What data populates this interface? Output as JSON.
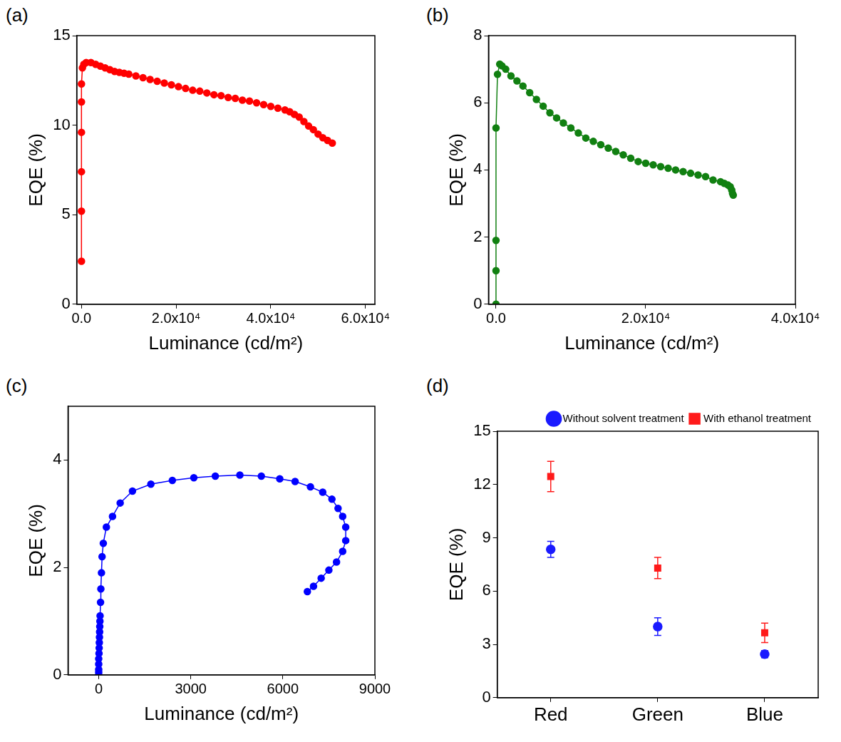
{
  "chart_data": [
    {
      "panel_label": "(a)",
      "type": "line",
      "x_label": "Luminance (cd/m²)",
      "y_label": "EQE (%)",
      "xlim": [
        -1000,
        62000
      ],
      "xticks": [
        {
          "value": 0,
          "label": "0.0"
        },
        {
          "value": 20000,
          "label": "2.0x10⁴"
        },
        {
          "value": 40000,
          "label": "4.0x10⁴"
        },
        {
          "value": 60000,
          "label": "6.0x10⁴"
        }
      ],
      "ylim": [
        0,
        15
      ],
      "yticks": [
        0,
        5,
        10,
        15
      ],
      "grid": false,
      "series": [
        {
          "color": "#ff0000",
          "marker": "circle",
          "line_style": "solid",
          "x": [
            0,
            0,
            0,
            0,
            0,
            0,
            200,
            500,
            1000,
            2000,
            3000,
            4000,
            5000,
            6000,
            7000,
            8000,
            9000,
            10000,
            11500,
            13000,
            14500,
            16000,
            17500,
            19000,
            20500,
            22000,
            23500,
            25000,
            26500,
            28000,
            29500,
            31000,
            32500,
            34000,
            35500,
            37000,
            38500,
            40000,
            41500,
            43000,
            44000,
            45000,
            46000,
            47000,
            48000,
            49000,
            50000,
            51000,
            52000,
            53000
          ],
          "values": [
            2.4,
            5.2,
            7.4,
            9.6,
            11.3,
            12.3,
            13.2,
            13.4,
            13.5,
            13.5,
            13.4,
            13.3,
            13.2,
            13.1,
            13.0,
            12.95,
            12.9,
            12.85,
            12.75,
            12.65,
            12.55,
            12.45,
            12.35,
            12.25,
            12.15,
            12.05,
            11.95,
            11.9,
            11.8,
            11.7,
            11.65,
            11.55,
            11.5,
            11.4,
            11.35,
            11.25,
            11.15,
            11.05,
            10.95,
            10.85,
            10.75,
            10.6,
            10.45,
            10.2,
            9.95,
            9.75,
            9.5,
            9.3,
            9.15,
            9.0
          ]
        }
      ]
    },
    {
      "panel_label": "(b)",
      "type": "line",
      "x_label": "Luminance (cd/m²)",
      "y_label": "EQE (%)",
      "xlim": [
        -1000,
        40000
      ],
      "xticks": [
        {
          "value": 0,
          "label": "0.0"
        },
        {
          "value": 20000,
          "label": "2.0x10⁴"
        },
        {
          "value": 40000,
          "label": "4.0x10⁴"
        }
      ],
      "ylim": [
        0,
        8
      ],
      "yticks": [
        0,
        2,
        4,
        6,
        8
      ],
      "grid": false,
      "series": [
        {
          "color": "#118011",
          "marker": "circle",
          "line_style": "solid",
          "x": [
            0,
            0,
            0,
            0,
            200,
            500,
            800,
            1300,
            2000,
            2800,
            3600,
            4500,
            5400,
            6300,
            7200,
            8100,
            9000,
            10000,
            11000,
            12000,
            13000,
            14000,
            15000,
            16000,
            17000,
            18000,
            19000,
            20000,
            21000,
            22000,
            23000,
            24000,
            25000,
            26000,
            27000,
            28000,
            29000,
            30000,
            30500,
            31000,
            31300,
            31500,
            31600,
            31700
          ],
          "values": [
            0,
            1.0,
            1.9,
            5.25,
            6.85,
            7.15,
            7.1,
            7.0,
            6.8,
            6.65,
            6.5,
            6.3,
            6.1,
            5.9,
            5.7,
            5.55,
            5.4,
            5.25,
            5.1,
            4.95,
            4.85,
            4.75,
            4.65,
            4.55,
            4.45,
            4.35,
            4.25,
            4.2,
            4.15,
            4.1,
            4.05,
            4.0,
            3.95,
            3.9,
            3.85,
            3.8,
            3.7,
            3.65,
            3.6,
            3.55,
            3.5,
            3.4,
            3.3,
            3.25
          ]
        }
      ]
    },
    {
      "panel_label": "(c)",
      "type": "line",
      "x_label": "Luminance (cd/m²)",
      "y_label": "EQE (%)",
      "xlim": [
        -1000,
        9000
      ],
      "xticks": [
        0,
        3000,
        6000,
        9000
      ],
      "ylim": [
        0,
        5
      ],
      "yticks": [
        0,
        2,
        4
      ],
      "grid": false,
      "series": [
        {
          "color": "#0000ff",
          "marker": "circle",
          "line_style": "solid",
          "x": [
            0,
            0,
            0,
            0,
            0,
            10,
            15,
            20,
            25,
            30,
            35,
            40,
            45,
            60,
            70,
            90,
            110,
            150,
            250,
            450,
            700,
            1100,
            1700,
            2400,
            3100,
            3800,
            4600,
            5300,
            5900,
            6400,
            6900,
            7300,
            7600,
            7800,
            7950,
            8050,
            8050,
            7950,
            7750,
            7500,
            7250,
            7000,
            6800
          ],
          "values": [
            0,
            0.05,
            0.1,
            0.2,
            0.3,
            0.4,
            0.5,
            0.6,
            0.7,
            0.8,
            0.9,
            1.0,
            1.1,
            1.35,
            1.6,
            1.9,
            2.2,
            2.45,
            2.75,
            2.95,
            3.2,
            3.42,
            3.55,
            3.62,
            3.67,
            3.7,
            3.72,
            3.7,
            3.65,
            3.6,
            3.5,
            3.4,
            3.27,
            3.1,
            2.95,
            2.75,
            2.5,
            2.3,
            2.1,
            1.95,
            1.8,
            1.65,
            1.55
          ]
        }
      ]
    },
    {
      "panel_label": "(d)",
      "type": "scatter",
      "y_label": "EQE (%)",
      "categories": [
        "Red",
        "Green",
        "Blue"
      ],
      "ylim": [
        0,
        15
      ],
      "yticks": [
        0,
        3,
        6,
        9,
        12,
        15
      ],
      "grid": false,
      "legend": "top-right",
      "series": [
        {
          "name": "Without solvent treatment",
          "color": "#1a1aff",
          "marker": "circle",
          "values": [
            8.35,
            4.0,
            2.45
          ],
          "errors": [
            0.45,
            0.5,
            0.2
          ]
        },
        {
          "name": "With ethanol treatment",
          "color": "#ff1a1a",
          "marker": "square",
          "values": [
            12.45,
            7.3,
            3.65
          ],
          "errors": [
            0.85,
            0.6,
            0.55
          ]
        }
      ]
    }
  ]
}
